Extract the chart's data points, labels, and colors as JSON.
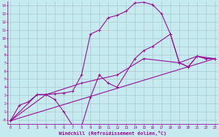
{
  "xlabel": "Windchill (Refroidissement éolien,°C)",
  "background_color": "#c5eaf0",
  "line_color": "#990099",
  "grid_color": "#a0bcc0",
  "xlim": [
    -0.3,
    23.3
  ],
  "ylim": [
    -0.5,
    14.5
  ],
  "xtick_vals": [
    0,
    1,
    2,
    3,
    4,
    5,
    6,
    7,
    8,
    9,
    10,
    11,
    12,
    13,
    14,
    15,
    16,
    17,
    18,
    19,
    20,
    21,
    22,
    23
  ],
  "ytick_vals": [
    0,
    1,
    2,
    3,
    4,
    5,
    6,
    7,
    8,
    9,
    10,
    11,
    12,
    13,
    14
  ],
  "ytick_labels": [
    "-0",
    "1",
    "2",
    "3",
    "4",
    "5",
    "6",
    "7",
    "8",
    "9",
    "10",
    "11",
    "12",
    "13",
    "14"
  ],
  "curve1_x": [
    0,
    1,
    2,
    3,
    4,
    5,
    6,
    7,
    8,
    9,
    10,
    11,
    12,
    13,
    14,
    15,
    16,
    17,
    18,
    19,
    20,
    21,
    22,
    23
  ],
  "curve1_y": [
    -0.1,
    1.8,
    2.2,
    3.1,
    3.1,
    3.2,
    3.3,
    3.5,
    5.5,
    10.5,
    11.0,
    12.5,
    12.8,
    13.3,
    14.3,
    14.4,
    14.1,
    13.0,
    10.5,
    7.0,
    6.5,
    7.8,
    7.5,
    7.5
  ],
  "curve2_x": [
    0,
    3,
    4,
    5,
    6,
    7,
    8,
    9,
    10,
    11,
    12,
    14,
    15,
    16,
    18,
    19,
    20,
    21,
    22,
    23
  ],
  "curve2_y": [
    -0.1,
    3.1,
    3.1,
    2.5,
    1.0,
    -0.7,
    -0.8,
    2.8,
    5.5,
    4.5,
    4.0,
    7.5,
    8.5,
    9.0,
    10.5,
    7.0,
    6.5,
    7.8,
    7.5,
    7.5
  ],
  "curve3_x": [
    0,
    23
  ],
  "curve3_y": [
    -0.1,
    7.5
  ],
  "curve4_x": [
    0,
    4,
    8,
    12,
    15,
    19,
    21,
    23
  ],
  "curve4_y": [
    -0.1,
    3.1,
    4.5,
    5.5,
    7.5,
    7.0,
    7.8,
    7.5
  ]
}
